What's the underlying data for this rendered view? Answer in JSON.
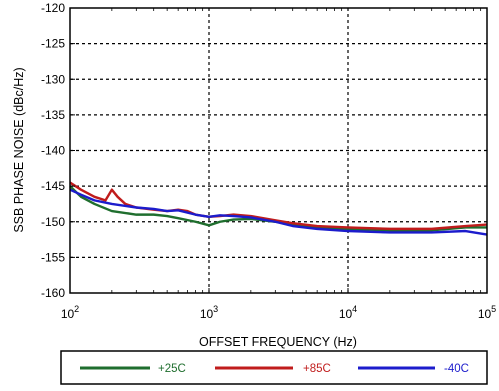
{
  "chart_data": {
    "type": "line",
    "xlabel": "OFFSET FREQUENCY (Hz)",
    "ylabel": "SSB PHASE NOISE (dBc/Hz)",
    "x_scale": "log",
    "xlim": [
      100,
      100000
    ],
    "ylim": [
      -160,
      -120
    ],
    "grid": true,
    "legend_position": "bottom",
    "x_ticks": [
      {
        "value": 100,
        "base": "10",
        "exp": "2"
      },
      {
        "value": 1000,
        "base": "10",
        "exp": "3"
      },
      {
        "value": 10000,
        "base": "10",
        "exp": "4"
      },
      {
        "value": 100000,
        "base": "10",
        "exp": "5"
      }
    ],
    "y_ticks": [
      {
        "value": -120,
        "label": "-120"
      },
      {
        "value": -125,
        "label": "-125"
      },
      {
        "value": -130,
        "label": "-130"
      },
      {
        "value": -135,
        "label": "-135"
      },
      {
        "value": -140,
        "label": "-140"
      },
      {
        "value": -145,
        "label": "-145"
      },
      {
        "value": -150,
        "label": "-150"
      },
      {
        "value": -155,
        "label": "-155"
      },
      {
        "value": -160,
        "label": "-160"
      }
    ],
    "series": [
      {
        "name": "+25C",
        "color": "#1f6e2e",
        "points": [
          [
            100,
            -145
          ],
          [
            120,
            -146.5
          ],
          [
            150,
            -147.5
          ],
          [
            200,
            -148.5
          ],
          [
            300,
            -149
          ],
          [
            400,
            -149
          ],
          [
            500,
            -149.2
          ],
          [
            600,
            -149.5
          ],
          [
            800,
            -150
          ],
          [
            1000,
            -150.5
          ],
          [
            1200,
            -150
          ],
          [
            1500,
            -149.7
          ],
          [
            2000,
            -149.6
          ],
          [
            3000,
            -150
          ],
          [
            4000,
            -150.4
          ],
          [
            6000,
            -150.8
          ],
          [
            10000,
            -151
          ],
          [
            20000,
            -151.2
          ],
          [
            40000,
            -151.2
          ],
          [
            70000,
            -150.8
          ],
          [
            100000,
            -150.8
          ]
        ]
      },
      {
        "name": "+85C",
        "color": "#c01c1c",
        "points": [
          [
            100,
            -144.5
          ],
          [
            120,
            -145.5
          ],
          [
            150,
            -146.5
          ],
          [
            180,
            -147
          ],
          [
            200,
            -145.5
          ],
          [
            220,
            -146.5
          ],
          [
            250,
            -147.5
          ],
          [
            300,
            -148
          ],
          [
            400,
            -148.3
          ],
          [
            500,
            -148.5
          ],
          [
            600,
            -148.3
          ],
          [
            700,
            -148.5
          ],
          [
            800,
            -149
          ],
          [
            1000,
            -149.3
          ],
          [
            1200,
            -149.2
          ],
          [
            1500,
            -149
          ],
          [
            2000,
            -149.2
          ],
          [
            3000,
            -149.8
          ],
          [
            4000,
            -150.2
          ],
          [
            6000,
            -150.6
          ],
          [
            10000,
            -150.8
          ],
          [
            20000,
            -151
          ],
          [
            40000,
            -151
          ],
          [
            70000,
            -150.6
          ],
          [
            100000,
            -150.4
          ]
        ]
      },
      {
        "name": "-40C",
        "color": "#1c1ccc",
        "points": [
          [
            100,
            -145.5
          ],
          [
            120,
            -146.2
          ],
          [
            150,
            -147
          ],
          [
            200,
            -147.5
          ],
          [
            300,
            -148
          ],
          [
            400,
            -148.2
          ],
          [
            500,
            -148.5
          ],
          [
            600,
            -148.4
          ],
          [
            800,
            -149
          ],
          [
            1000,
            -149.3
          ],
          [
            1200,
            -149.1
          ],
          [
            1500,
            -149.2
          ],
          [
            2000,
            -149.4
          ],
          [
            3000,
            -150
          ],
          [
            4000,
            -150.6
          ],
          [
            6000,
            -151
          ],
          [
            10000,
            -151.3
          ],
          [
            20000,
            -151.5
          ],
          [
            40000,
            -151.5
          ],
          [
            70000,
            -151.3
          ],
          [
            100000,
            -151.8
          ]
        ]
      }
    ]
  }
}
